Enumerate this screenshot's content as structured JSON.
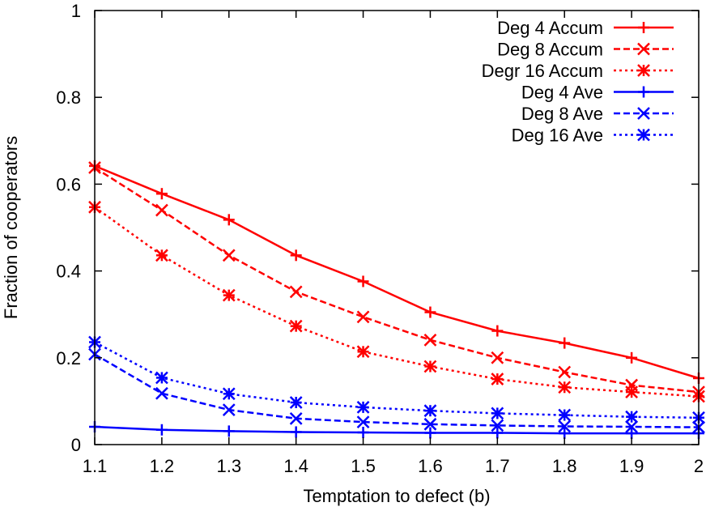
{
  "chart_data": {
    "type": "line",
    "title": "",
    "xlabel": "Temptation to defect (b)",
    "ylabel": "Fraction of cooperators",
    "xlim": [
      1.1,
      2.0
    ],
    "ylim": [
      0,
      1
    ],
    "x": [
      1.1,
      1.2,
      1.3,
      1.4,
      1.5,
      1.6,
      1.7,
      1.8,
      1.9,
      2.0
    ],
    "xticks": [
      {
        "value": 1.1,
        "label": "1.1"
      },
      {
        "value": 1.2,
        "label": "1.2"
      },
      {
        "value": 1.3,
        "label": "1.3"
      },
      {
        "value": 1.4,
        "label": "1.4"
      },
      {
        "value": 1.5,
        "label": "1.5"
      },
      {
        "value": 1.6,
        "label": "1.6"
      },
      {
        "value": 1.7,
        "label": "1.7"
      },
      {
        "value": 1.8,
        "label": "1.8"
      },
      {
        "value": 1.9,
        "label": "1.9"
      },
      {
        "value": 2.0,
        "label": "2"
      }
    ],
    "yticks": [
      {
        "value": 0,
        "label": "0"
      },
      {
        "value": 0.2,
        "label": "0.2"
      },
      {
        "value": 0.4,
        "label": "0.4"
      },
      {
        "value": 0.6,
        "label": "0.6"
      },
      {
        "value": 0.8,
        "label": "0.8"
      },
      {
        "value": 1,
        "label": "1"
      }
    ],
    "grid": false,
    "legend_position": "top-right",
    "series": [
      {
        "name": "Deg 4 Accum",
        "color": "#ff0000",
        "dash": "solid",
        "marker": "plus",
        "values": [
          0.642,
          0.578,
          0.518,
          0.436,
          0.376,
          0.305,
          0.262,
          0.234,
          0.2,
          0.153
        ]
      },
      {
        "name": "Deg 8 Accum",
        "color": "#ff0000",
        "dash": "dashed",
        "marker": "x",
        "values": [
          0.638,
          0.54,
          0.436,
          0.352,
          0.294,
          0.241,
          0.2,
          0.167,
          0.137,
          0.121
        ]
      },
      {
        "name": "Degr 16 Accum",
        "color": "#ff0000",
        "dash": "dotted",
        "marker": "star",
        "values": [
          0.547,
          0.436,
          0.344,
          0.273,
          0.214,
          0.18,
          0.151,
          0.132,
          0.121,
          0.111
        ]
      },
      {
        "name": "Deg 4 Ave",
        "color": "#0000ff",
        "dash": "solid",
        "marker": "plus",
        "values": [
          0.041,
          0.034,
          0.031,
          0.029,
          0.028,
          0.027,
          0.027,
          0.026,
          0.026,
          0.026
        ]
      },
      {
        "name": "Deg 8 Ave",
        "color": "#0000ff",
        "dash": "dashed",
        "marker": "x",
        "values": [
          0.208,
          0.118,
          0.08,
          0.06,
          0.052,
          0.047,
          0.044,
          0.042,
          0.041,
          0.04
        ]
      },
      {
        "name": "Deg 16 Ave",
        "color": "#0000ff",
        "dash": "dotted",
        "marker": "star",
        "values": [
          0.236,
          0.154,
          0.117,
          0.097,
          0.086,
          0.078,
          0.072,
          0.068,
          0.064,
          0.062
        ]
      }
    ]
  }
}
